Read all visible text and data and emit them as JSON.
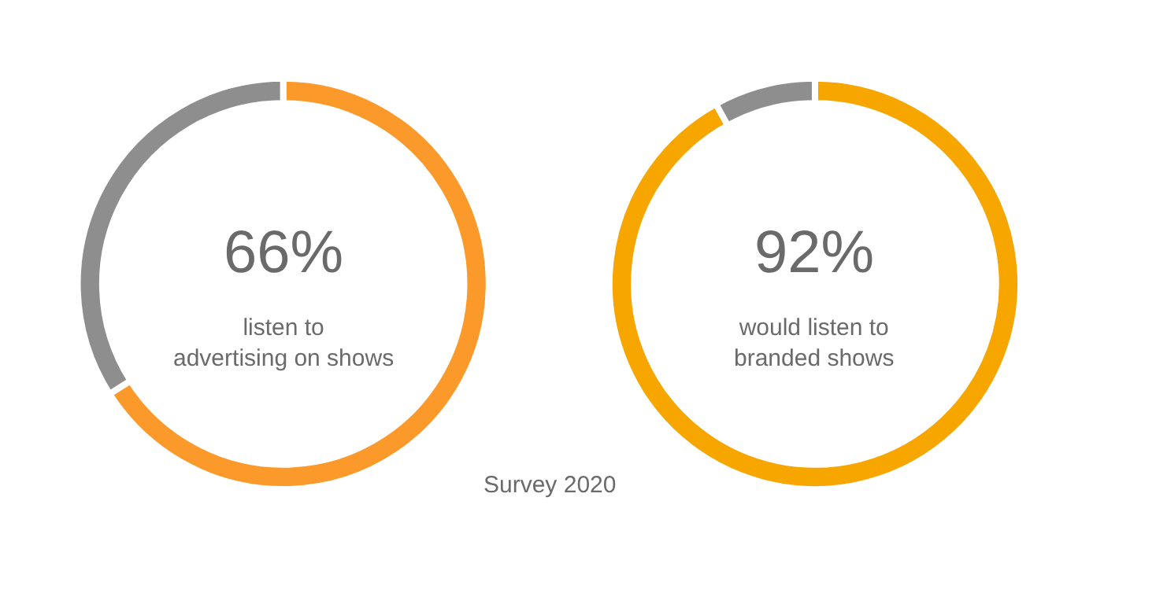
{
  "chart_data": [
    {
      "type": "donut",
      "title": "66%",
      "subtitle": "listen to\nadvertising on shows",
      "categories": [
        null,
        null
      ],
      "values": [
        66,
        34
      ],
      "colors": [
        "#fb9a2a",
        "#8e8e8e"
      ],
      "annotations": [
        "Survey 2020"
      ]
    },
    {
      "type": "donut",
      "title": "92%",
      "subtitle": "would listen to\nbranded shows",
      "categories": [
        null,
        null
      ],
      "values": [
        92,
        8
      ],
      "colors": [
        "#f7a600",
        "#8e8e8e"
      ]
    }
  ]
}
